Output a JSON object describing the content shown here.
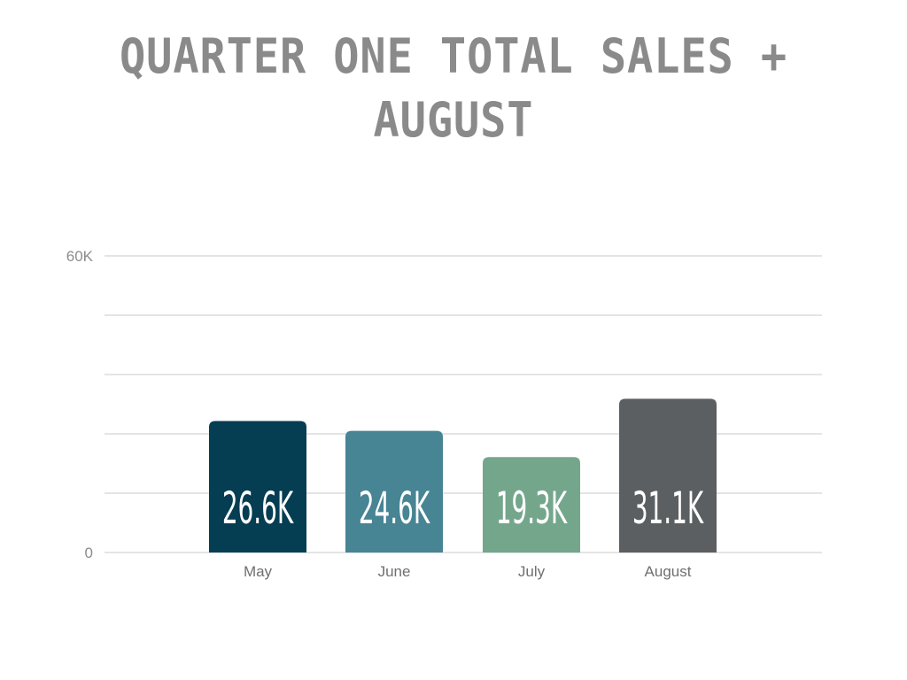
{
  "chart_data": {
    "type": "bar",
    "title": "QUARTER ONE TOTAL SALES + AUGUST",
    "categories": [
      "May",
      "June",
      "July",
      "August"
    ],
    "values": [
      26.6,
      24.6,
      19.3,
      31.1
    ],
    "data_labels": [
      "26.6K",
      "24.6K",
      "19.3K",
      "31.1K"
    ],
    "colors": [
      "#053d52",
      "#478494",
      "#74a68c",
      "#5b5f62"
    ],
    "unit": "K",
    "ylim": [
      0,
      60
    ],
    "yticks": [
      {
        "value": 0,
        "label": "0"
      },
      {
        "value": 60,
        "label": "60K"
      }
    ],
    "gridlines": [
      0,
      12,
      24,
      36,
      48,
      60
    ],
    "grid": true,
    "legend": "none"
  }
}
